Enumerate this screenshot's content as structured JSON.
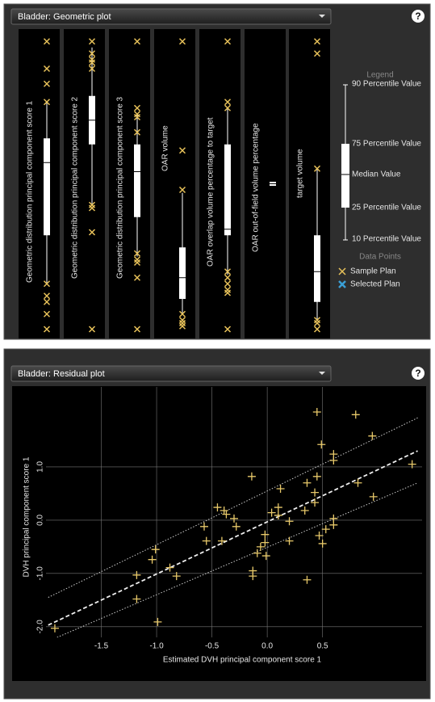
{
  "chart_data": [
    {
      "type": "box",
      "title": "Bladder: Geometric plot",
      "help": "?",
      "categories": [
        "Geometric distribution principal component score 1",
        "Geometric distribution principal component score 2",
        "Geometric distribution principal component score 3",
        "OAR volume",
        "OAR overlap volume percentage to target",
        "OAR out-of-field volume percentage",
        "target volume"
      ],
      "boxes": [
        {
          "p10": 17,
          "p25": 33,
          "median": 57,
          "p75": 65,
          "p90": 77,
          "samples": [
            97,
            88,
            83,
            77,
            17,
            13,
            11,
            7,
            2
          ]
        },
        {
          "p10": 43,
          "p25": 63,
          "median": 71,
          "p75": 79,
          "p90": 95,
          "samples": [
            97,
            93,
            91,
            90,
            88,
            43,
            42,
            34,
            2
          ]
        },
        {
          "p10": 26,
          "p25": 39,
          "median": 54,
          "p75": 63,
          "p90": 73,
          "samples": [
            97,
            75,
            73,
            72,
            67,
            27,
            25,
            24,
            19,
            2
          ]
        },
        {
          "p10": 7,
          "p25": 12,
          "median": 19,
          "p75": 29,
          "p90": 47,
          "samples": [
            97,
            61,
            48,
            7,
            5,
            4,
            3
          ]
        },
        {
          "p10": 20,
          "p25": 33,
          "median": 35,
          "p75": 63,
          "p90": 75,
          "samples": [
            97,
            77,
            75,
            21,
            19,
            17,
            15,
            14,
            2
          ]
        },
        {
          "p10": 50,
          "p25": 50,
          "median": 50,
          "p75": 50,
          "p90": 50,
          "samples": []
        },
        {
          "p10": 5,
          "p25": 11,
          "median": 21,
          "p75": 33,
          "p90": 55,
          "samples": [
            97,
            93,
            55,
            5,
            4,
            2
          ]
        }
      ],
      "ylim": [
        0,
        100
      ],
      "color": "#ffffff",
      "sample_color": "#e8c25a",
      "selected_color": "#3a9fd6",
      "legend": {
        "title": "Legend",
        "labels": [
          "90 Percentile Value",
          "75 Percentile Value",
          "Median Value",
          "25 Percentile Value",
          "10 Percentile Value"
        ],
        "points_title": "Data Points",
        "sample": "Sample Plan",
        "selected": "Selected Plan"
      }
    },
    {
      "type": "scatter",
      "title": "Bladder: Residual plot",
      "help": "?",
      "xlabel": "Estimated DVH principal component score 1",
      "ylabel": "DVH principal component score 1",
      "x": [
        -1.92,
        -0.99,
        -1.18,
        -1.18,
        -1.04,
        -1.01,
        -0.88,
        -0.82,
        -0.57,
        -0.55,
        -0.45,
        -0.39,
        -0.37,
        -0.41,
        -0.3,
        -0.28,
        -0.14,
        -0.13,
        -0.13,
        -0.09,
        -0.06,
        -0.02,
        -0.02,
        -0.01,
        0.04,
        0.1,
        0.1,
        0.12,
        0.2,
        0.2,
        0.34,
        0.36,
        0.36,
        0.43,
        0.43,
        0.45,
        0.45,
        0.47,
        0.49,
        0.5,
        0.53,
        0.6,
        0.6,
        0.6,
        0.6,
        0.8,
        0.82,
        0.95,
        0.96,
        1.31
      ],
      "y": [
        -2.03,
        -1.91,
        -1.48,
        -1.03,
        -0.74,
        -0.55,
        -0.89,
        -1.05,
        -0.12,
        -0.39,
        0.24,
        0.18,
        0.11,
        -0.39,
        0.03,
        -0.12,
        0.82,
        -0.95,
        -1.05,
        -0.62,
        -0.5,
        -0.42,
        -0.27,
        -0.67,
        0.14,
        0.24,
        0.09,
        0.59,
        -0.02,
        -0.39,
        0.18,
        0.7,
        -1.12,
        0.52,
        0.33,
        2.03,
        0.82,
        -0.29,
        1.42,
        -0.44,
        -0.17,
        1.12,
        1.24,
        0.03,
        -0.09,
        1.98,
        0.7,
        1.58,
        0.44,
        1.05
      ],
      "marker_color": "#e8c96a",
      "xlim": [
        -2.0,
        1.4
      ],
      "ylim": [
        -2.2,
        2.5
      ],
      "xticks": [
        -1.5,
        {
          "value": -1,
          "label": "-1.0"
        },
        -0.5,
        {
          "value": 0,
          "label": "0.0"
        },
        0.5
      ],
      "yticks": [
        {
          "value": -2,
          "label": "-2.0"
        },
        {
          "value": -1,
          "label": "-1.0"
        },
        {
          "value": 0,
          "label": "0.0"
        },
        {
          "value": 1,
          "label": "1.0"
        }
      ],
      "grid": true,
      "lines": [
        {
          "style": "dashed",
          "x": [
            -1.98,
            1.36
          ],
          "y": [
            -1.97,
            1.3
          ]
        },
        {
          "style": "dotted",
          "x": [
            -1.98,
            1.36
          ],
          "y": [
            -1.45,
            1.92
          ]
        },
        {
          "style": "dotted",
          "x": [
            -1.9,
            1.36
          ],
          "y": [
            -2.2,
            0.7
          ]
        }
      ]
    }
  ]
}
